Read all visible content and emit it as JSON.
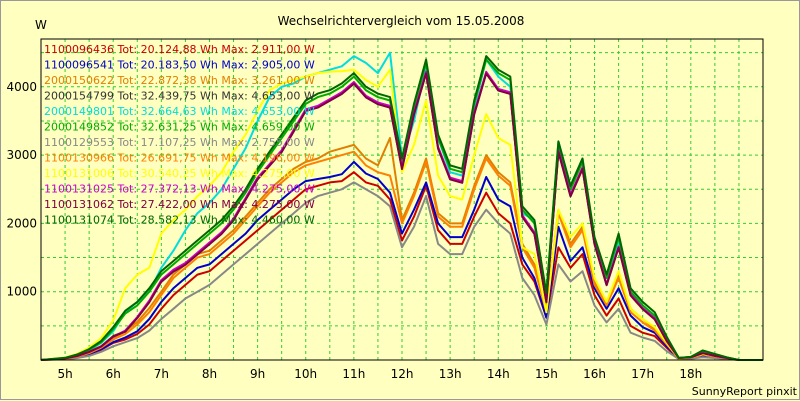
{
  "chart_data": {
    "type": "line",
    "title": "Wechselrichtervergleich vom 15.05.2008",
    "ylabel": "W",
    "footer": "SunnyReport pinxit",
    "ylim": [
      0,
      4700
    ],
    "xlim": [
      4.5,
      19.5
    ],
    "y_ticks": [
      1000,
      2000,
      3000,
      4000
    ],
    "x_ticks": [
      "5h",
      "6h",
      "7h",
      "8h",
      "9h",
      "10h",
      "11h",
      "12h",
      "13h",
      "14h",
      "15h",
      "16h",
      "17h",
      "18h"
    ],
    "grid": true,
    "legend_placement": "top-left",
    "x": [
      4.5,
      5.0,
      5.25,
      5.5,
      5.75,
      6.0,
      6.25,
      6.5,
      6.75,
      7.0,
      7.25,
      7.5,
      7.75,
      8.0,
      8.25,
      8.5,
      8.75,
      9.0,
      9.25,
      9.5,
      9.75,
      10.0,
      10.25,
      10.5,
      10.75,
      11.0,
      11.25,
      11.5,
      11.75,
      12.0,
      12.25,
      12.5,
      12.75,
      13.0,
      13.25,
      13.5,
      13.75,
      14.0,
      14.25,
      14.5,
      14.75,
      15.0,
      15.25,
      15.5,
      15.75,
      16.0,
      16.25,
      16.5,
      16.75,
      17.0,
      17.25,
      17.5,
      17.75,
      18.0,
      18.25,
      18.5,
      18.75,
      19.0,
      19.25,
      19.5
    ],
    "series": [
      {
        "name": "1100096436 Tot: 20.124,88 Wh Max: 2.911,00 W",
        "color": "#cc0000",
        "values": [
          0,
          15,
          40,
          80,
          150,
          250,
          300,
          380,
          520,
          750,
          950,
          1100,
          1250,
          1300,
          1450,
          1600,
          1750,
          1900,
          2050,
          2200,
          2350,
          2500,
          2550,
          2600,
          2620,
          2750,
          2600,
          2550,
          2350,
          1750,
          2100,
          2550,
          1900,
          1700,
          1700,
          2100,
          2450,
          2150,
          2000,
          1400,
          1150,
          620,
          1650,
          1350,
          1550,
          950,
          650,
          900,
          500,
          400,
          350,
          180,
          20,
          30,
          60,
          40,
          20,
          0,
          0,
          0
        ]
      },
      {
        "name": "1100096541 Tot: 20.183,50 Wh Max: 2.905,00 W",
        "color": "#0000cc",
        "values": [
          0,
          18,
          45,
          90,
          160,
          260,
          330,
          420,
          600,
          850,
          1050,
          1200,
          1350,
          1400,
          1550,
          1700,
          1850,
          2050,
          2200,
          2350,
          2500,
          2620,
          2650,
          2680,
          2720,
          2900,
          2730,
          2650,
          2450,
          1850,
          2200,
          2600,
          2000,
          1800,
          1800,
          2200,
          2680,
          2350,
          2250,
          1500,
          1200,
          620,
          1950,
          1450,
          1650,
          1050,
          750,
          1050,
          650,
          480,
          400,
          200,
          20,
          30,
          70,
          50,
          25,
          0,
          0,
          0
        ]
      },
      {
        "name": "2000150622 Tot: 22.872,38 Wh Max: 3.261,00 W",
        "color": "#e08000",
        "values": [
          0,
          22,
          55,
          110,
          190,
          320,
          420,
          560,
          760,
          1000,
          1250,
          1400,
          1550,
          1600,
          1750,
          1900,
          2100,
          2300,
          2500,
          2650,
          2800,
          2900,
          2950,
          3050,
          3100,
          3150,
          2950,
          2850,
          3250,
          2050,
          2450,
          2950,
          2150,
          2000,
          2000,
          2550,
          3000,
          2750,
          2600,
          1700,
          1400,
          750,
          2200,
          1700,
          1950,
          1150,
          850,
          1250,
          750,
          600,
          450,
          240,
          20,
          35,
          80,
          55,
          25,
          0,
          0,
          0
        ]
      },
      {
        "name": "2000154799 Tot: 32.439,75 Wh Max: 4.653,00 W",
        "color": "#333333",
        "values": [
          0,
          25,
          60,
          120,
          200,
          350,
          420,
          620,
          850,
          1150,
          1300,
          1400,
          1550,
          1700,
          1850,
          2050,
          2350,
          2650,
          2850,
          3050,
          3350,
          3650,
          3700,
          3800,
          3900,
          4050,
          3850,
          3750,
          3700,
          2800,
          3600,
          4200,
          3100,
          2650,
          2600,
          3600,
          4200,
          3950,
          3900,
          2100,
          1850,
          850,
          3050,
          2400,
          2800,
          1700,
          1100,
          1650,
          950,
          750,
          600,
          280,
          30,
          40,
          100,
          60,
          30,
          0,
          0,
          0
        ]
      },
      {
        "name": "2000149801 Tot: 32.664,63 Wh Max: 4.653,00 W",
        "color": "#00dddd",
        "values": [
          0,
          28,
          70,
          140,
          250,
          420,
          700,
          850,
          1000,
          1350,
          1600,
          1900,
          2150,
          2300,
          2500,
          2800,
          3100,
          3500,
          3850,
          4000,
          4050,
          4150,
          4200,
          4250,
          4300,
          4450,
          4350,
          4200,
          4500,
          2950,
          3500,
          4300,
          3250,
          2750,
          2700,
          3700,
          4400,
          4150,
          4000,
          2150,
          2050,
          900,
          3200,
          2550,
          2950,
          1750,
          1200,
          1750,
          1000,
          800,
          650,
          320,
          30,
          45,
          120,
          80,
          35,
          0,
          0,
          0
        ]
      },
      {
        "name": "2000149852 Tot: 32.631,25 Wh Max: 4.659,00 W",
        "color": "#00aa00",
        "values": [
          0,
          30,
          75,
          150,
          260,
          450,
          680,
          800,
          1000,
          1250,
          1400,
          1550,
          1700,
          1850,
          2000,
          2200,
          2450,
          2750,
          3000,
          3250,
          3500,
          3750,
          3850,
          3900,
          4000,
          4150,
          3950,
          3850,
          3800,
          2900,
          3700,
          4350,
          3250,
          2800,
          2750,
          3750,
          4400,
          4200,
          4100,
          2200,
          2000,
          950,
          3150,
          2500,
          2900,
          1750,
          1200,
          1800,
          1000,
          800,
          650,
          320,
          30,
          45,
          130,
          80,
          35,
          0,
          0,
          0
        ]
      },
      {
        "name": "1100129553 Tot: 17.107,25 Wh Max: 2.755,00 W",
        "color": "#888888",
        "values": [
          0,
          10,
          30,
          60,
          120,
          200,
          260,
          320,
          430,
          600,
          750,
          900,
          1000,
          1100,
          1250,
          1400,
          1550,
          1700,
          1850,
          2000,
          2150,
          2300,
          2400,
          2450,
          2500,
          2600,
          2500,
          2400,
          2250,
          1650,
          1950,
          2400,
          1700,
          1550,
          1550,
          1950,
          2200,
          2000,
          1850,
          1200,
          950,
          520,
          1400,
          1150,
          1300,
          800,
          550,
          750,
          400,
          330,
          280,
          130,
          15,
          20,
          40,
          30,
          15,
          0,
          0,
          0
        ]
      },
      {
        "name": "1100130966 Tot: 26.691,75 Wh Max: 4.196,00 W",
        "color": "#ff8000",
        "values": [
          0,
          20,
          50,
          100,
          180,
          300,
          380,
          520,
          700,
          950,
          1200,
          1350,
          1500,
          1550,
          1700,
          1850,
          2050,
          2250,
          2450,
          2600,
          2750,
          2850,
          2900,
          2950,
          3000,
          3050,
          2850,
          2750,
          2700,
          2000,
          2400,
          2900,
          2100,
          1950,
          1950,
          2500,
          2950,
          2700,
          2550,
          1650,
          1350,
          700,
          2150,
          1650,
          1900,
          1100,
          800,
          1200,
          700,
          550,
          430,
          230,
          20,
          35,
          80,
          50,
          25,
          0,
          0,
          0
        ]
      },
      {
        "name": "1100131006 Tot: 30.540,25 Wh Max: 4.275,00 W",
        "color": "#ffff00",
        "values": [
          0,
          35,
          90,
          180,
          320,
          580,
          1050,
          1250,
          1350,
          1850,
          2050,
          2200,
          2400,
          2550,
          2750,
          3050,
          3300,
          3650,
          3950,
          4050,
          4100,
          4150,
          4200,
          4220,
          4230,
          4250,
          4100,
          4000,
          4250,
          2750,
          3150,
          3800,
          2700,
          2400,
          2350,
          3000,
          3600,
          3250,
          3150,
          1650,
          1550,
          700,
          2200,
          1800,
          2000,
          1200,
          850,
          1300,
          750,
          600,
          480,
          250,
          25,
          40,
          90,
          60,
          30,
          0,
          0,
          0
        ]
      },
      {
        "name": "1100131025 Tot: 27.372,13 Wh Max: 4.275,00 W",
        "color": "#cc00cc",
        "values": [
          0,
          25,
          60,
          120,
          200,
          340,
          430,
          630,
          870,
          1170,
          1320,
          1420,
          1570,
          1720,
          1870,
          2070,
          2370,
          2670,
          2870,
          3070,
          3370,
          3670,
          3720,
          3820,
          3920,
          4070,
          3870,
          3770,
          3720,
          2820,
          3620,
          4220,
          3120,
          2670,
          2620,
          3620,
          4220,
          3970,
          3920,
          2120,
          1870,
          860,
          3070,
          2420,
          2820,
          1710,
          1110,
          1660,
          960,
          760,
          610,
          285,
          30,
          40,
          100,
          60,
          30,
          0,
          0,
          0
        ]
      },
      {
        "name": "1100131062 Tot: 27.422,00 Wh Max: 4.275,00 W",
        "color": "#800040",
        "values": [
          0,
          24,
          58,
          118,
          198,
          345,
          415,
          615,
          845,
          1145,
          1295,
          1395,
          1545,
          1695,
          1845,
          2045,
          2345,
          2645,
          2845,
          3045,
          3345,
          3645,
          3695,
          3795,
          3895,
          4045,
          3845,
          3745,
          3695,
          2795,
          3595,
          4195,
          3095,
          2645,
          2595,
          3595,
          4195,
          3945,
          3895,
          2095,
          1845,
          845,
          3045,
          2395,
          2795,
          1695,
          1095,
          1645,
          945,
          745,
          595,
          275,
          30,
          40,
          100,
          60,
          30,
          0,
          0,
          0
        ]
      },
      {
        "name": "1100131074 Tot: 28.582,13 Wh Max: 4.460,00 W",
        "color": "#006600",
        "values": [
          0,
          32,
          80,
          160,
          280,
          480,
          720,
          850,
          1050,
          1300,
          1450,
          1600,
          1750,
          1900,
          2050,
          2250,
          2500,
          2800,
          3050,
          3300,
          3550,
          3800,
          3900,
          3950,
          4050,
          4200,
          4000,
          3900,
          3850,
          2950,
          3750,
          4400,
          3300,
          2850,
          2800,
          3800,
          4450,
          4250,
          4150,
          2250,
          2050,
          980,
          3200,
          2550,
          2950,
          1800,
          1250,
          1850,
          1050,
          850,
          700,
          340,
          30,
          45,
          140,
          90,
          40,
          0,
          0,
          0
        ]
      }
    ]
  }
}
